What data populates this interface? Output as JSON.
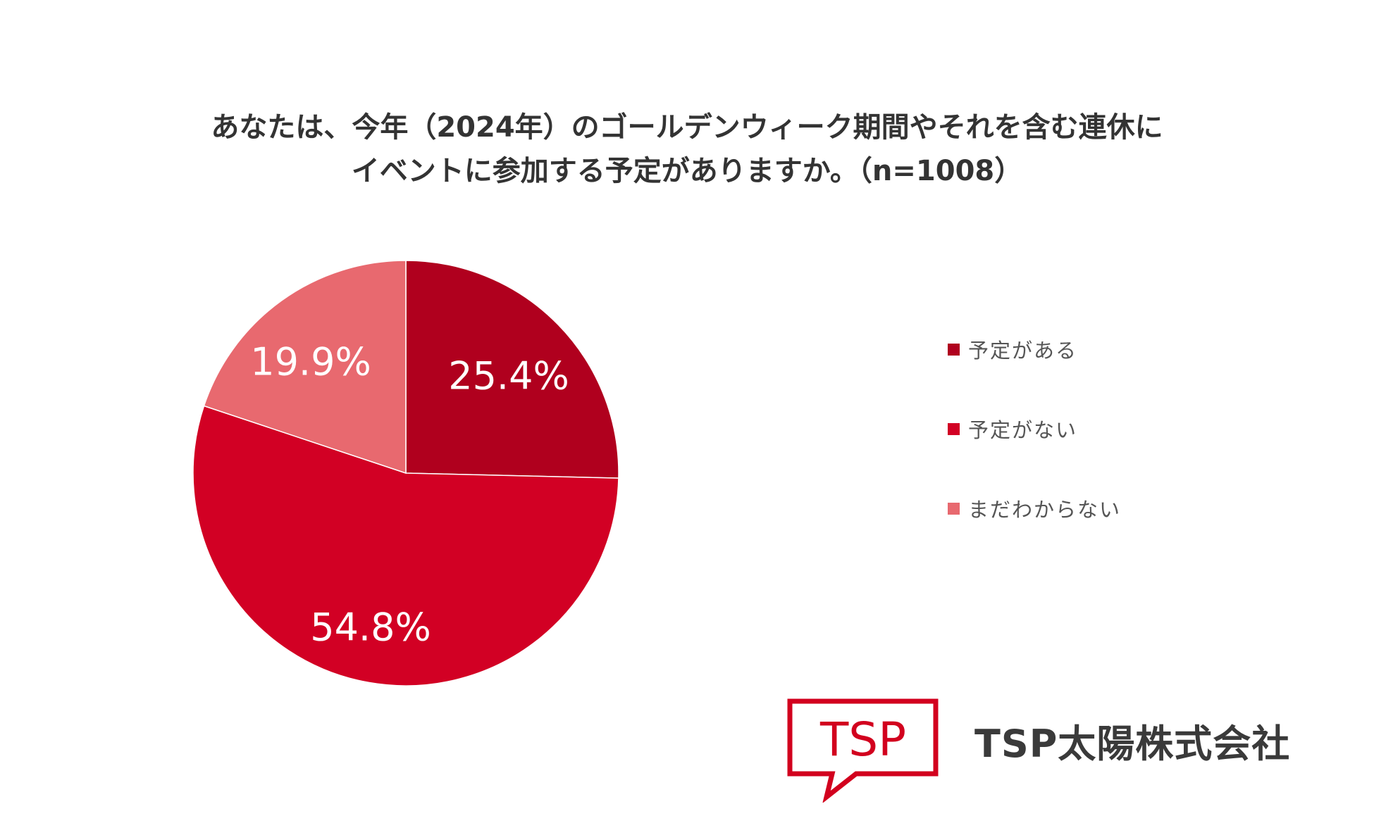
{
  "chart_data": {
    "type": "pie",
    "title_lines": [
      "あなたは、今年（2024年）のゴールデンウィーク期間やそれを含む連休に",
      "イベントに参加する予定がありますか。（n=1008）"
    ],
    "slices": [
      {
        "label": "予定がある",
        "value": 25.4,
        "value_label": "25.4%",
        "color": "#b0001e"
      },
      {
        "label": "予定がない",
        "value": 54.8,
        "value_label": "54.8%",
        "color": "#d20024"
      },
      {
        "label": "まだわからない",
        "value": 19.9,
        "value_label": "19.9%",
        "color": "#e8696f"
      }
    ],
    "start_angle": "12 o'clock",
    "direction": "clockwise",
    "legend_position": "right"
  },
  "logo": {
    "mark_text": "TSP",
    "color": "#d2001e"
  },
  "company_name": "TSP太陽株式会社"
}
